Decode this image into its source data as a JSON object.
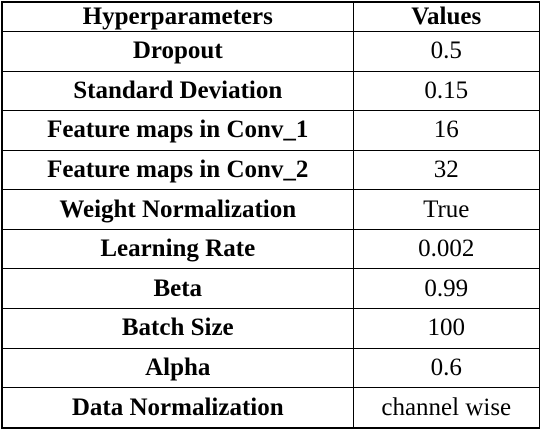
{
  "table": {
    "header": [
      "Hyperparameters",
      "Values"
    ],
    "rows": [
      [
        "Dropout",
        "0.5"
      ],
      [
        "Standard Deviation",
        "0.15"
      ],
      [
        "Feature maps in Conv_1",
        "16"
      ],
      [
        "Feature maps in Conv_2",
        "32"
      ],
      [
        "Weight Normalization",
        "True"
      ],
      [
        "Learning Rate",
        "0.002"
      ],
      [
        "Beta",
        "0.99"
      ],
      [
        "Batch Size",
        "100"
      ],
      [
        "Alpha",
        "0.6"
      ],
      [
        "Data Normalization",
        "channel wise"
      ]
    ]
  }
}
